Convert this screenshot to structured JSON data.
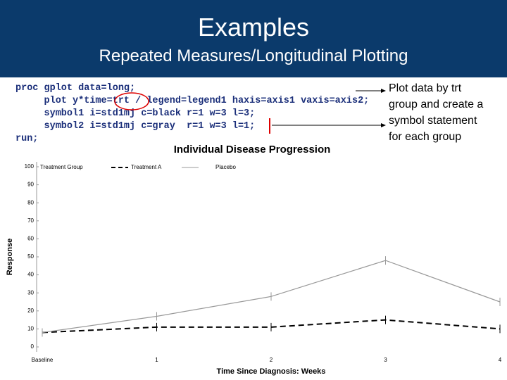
{
  "header": {
    "title": "Examples",
    "subtitle": "Repeated Measures/Longitudinal Plotting"
  },
  "code": [
    "proc gplot data=long;",
    "     plot y*time=trt / legend=legend1 haxis=axis1 vaxis=axis2;",
    "     symbol1 i=std1mj c=black r=1 w=3 l=3;",
    "     symbol2 i=std1mj c=gray  r=1 w=3 l=1;",
    "run;"
  ],
  "annotation": [
    "Plot data by trt",
    "group and create a",
    "symbol statement",
    "for each group"
  ],
  "chart_data": {
    "type": "line",
    "title": "Individual Disease Progression",
    "x_label": "Time Since Diagnosis: Weeks",
    "y_label": "Response",
    "legend_title": "Treatment Group",
    "categories": [
      "Baseline",
      "1",
      "2",
      "3",
      "4"
    ],
    "series": [
      {
        "name": "Treatment A",
        "color": "#000000",
        "dash": true,
        "values": [
          8,
          11,
          11,
          15,
          10
        ]
      },
      {
        "name": "Placebo",
        "color": "#999999",
        "dash": false,
        "values": [
          8,
          17,
          28,
          48,
          25
        ]
      }
    ],
    "ylim": [
      0,
      100
    ],
    "yticks": [
      0,
      10,
      20,
      30,
      40,
      50,
      60,
      70,
      80,
      90,
      100
    ]
  }
}
